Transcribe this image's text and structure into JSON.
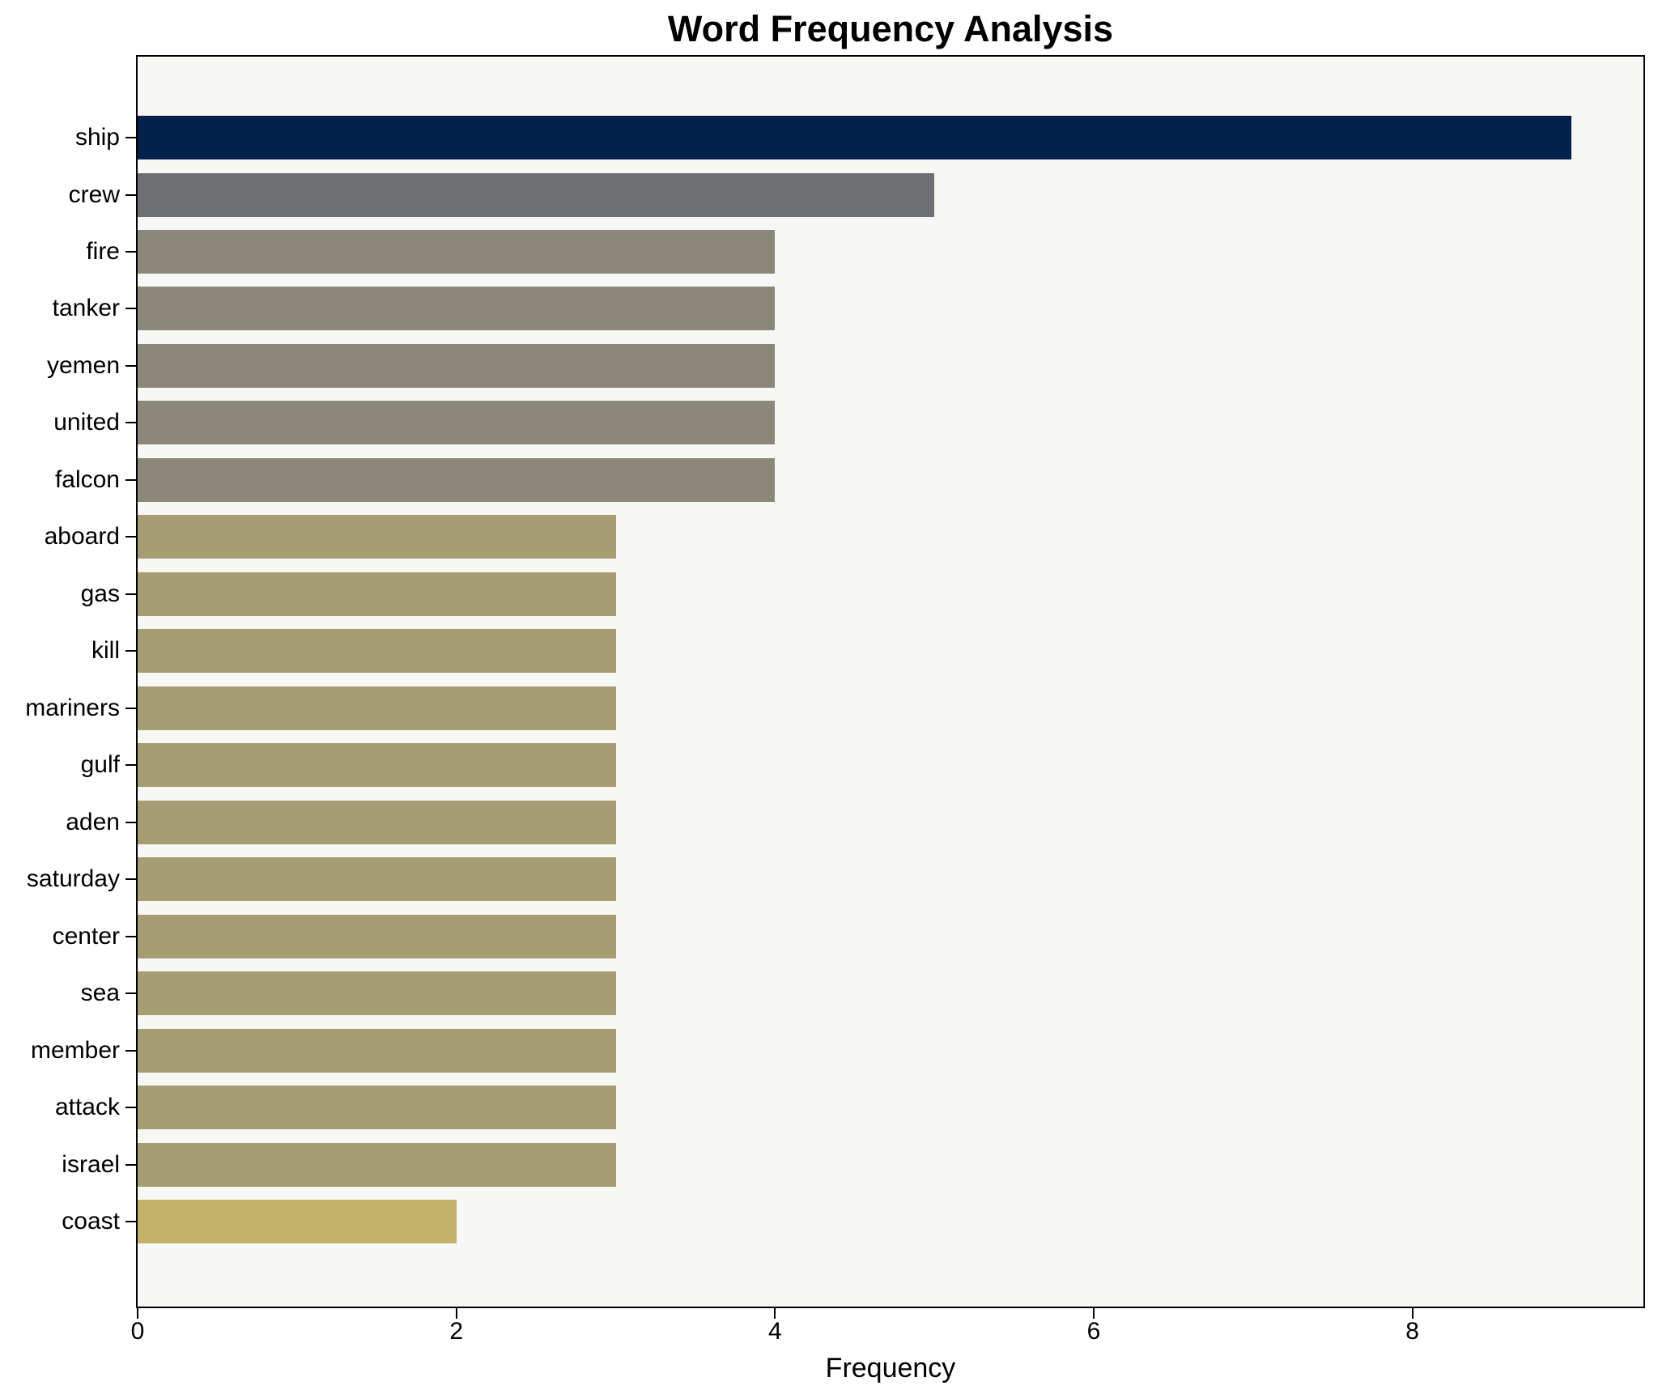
{
  "figure": {
    "background_color": "#ffffff",
    "plot_background_color": "#f7f7f5",
    "spine_color": "#000000"
  },
  "chart_data": {
    "type": "bar",
    "orientation": "horizontal",
    "title": "Word Frequency Analysis",
    "xlabel": "Frequency",
    "ylabel": "",
    "grid": false,
    "legend_position": "none",
    "xlim": [
      0,
      9.45
    ],
    "xticks": [
      0,
      2,
      4,
      6,
      8
    ],
    "categories": [
      "ship",
      "crew",
      "fire",
      "tanker",
      "yemen",
      "united",
      "falcon",
      "aboard",
      "gas",
      "kill",
      "mariners",
      "gulf",
      "aden",
      "saturday",
      "center",
      "sea",
      "member",
      "attack",
      "israel",
      "coast"
    ],
    "values": [
      9,
      5,
      4,
      4,
      4,
      4,
      4,
      3,
      3,
      3,
      3,
      3,
      3,
      3,
      3,
      3,
      3,
      3,
      3,
      2
    ],
    "bar_colors": [
      "#02224d",
      "#6e6f72",
      "#8b8779",
      "#8b8779",
      "#8b8779",
      "#8b8779",
      "#8b8779",
      "#a69d72",
      "#a69d72",
      "#a69d72",
      "#a69d72",
      "#a69d72",
      "#a69d72",
      "#a69d72",
      "#a69d72",
      "#a69d72",
      "#a69d72",
      "#a69d72",
      "#a69d72",
      "#c4b268"
    ]
  }
}
